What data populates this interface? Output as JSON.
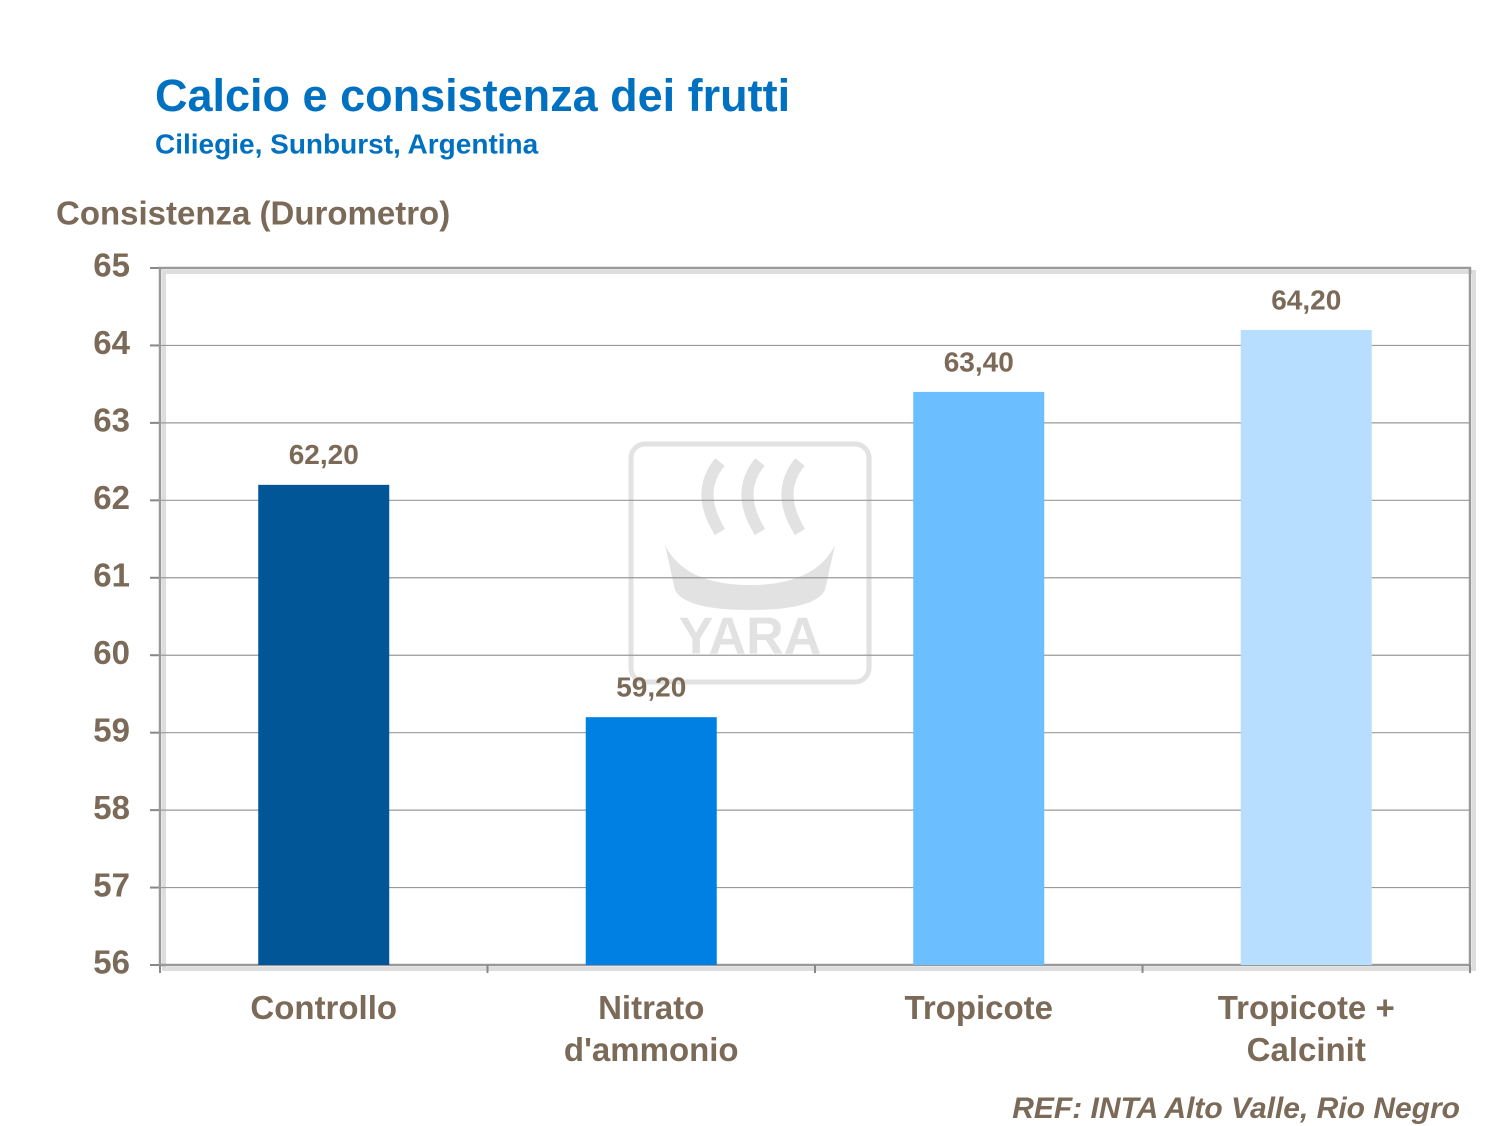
{
  "chart_data": {
    "type": "bar",
    "title": "Calcio e consistenza dei frutti",
    "subtitle": "Ciliegie, Sunburst, Argentina",
    "y_label": "Consistenza (Durometro)",
    "categories": [
      "Controllo",
      "Nitrato d'ammonio",
      "Tropicote",
      "Tropicote + Calcinit"
    ],
    "values": [
      62.2,
      59.2,
      63.4,
      64.2
    ],
    "value_labels": [
      "62,20",
      "59,20",
      "63,40",
      "64,20"
    ],
    "colors": [
      "#005696",
      "#0080e2",
      "#6bbeff",
      "#b7deff"
    ],
    "ylim": [
      56,
      65
    ],
    "yticks": [
      56,
      57,
      58,
      59,
      60,
      61,
      62,
      63,
      64,
      65
    ],
    "grid": true,
    "watermark": "YARA",
    "note": "REF: INTA Alto Valle, Rio Negro"
  }
}
